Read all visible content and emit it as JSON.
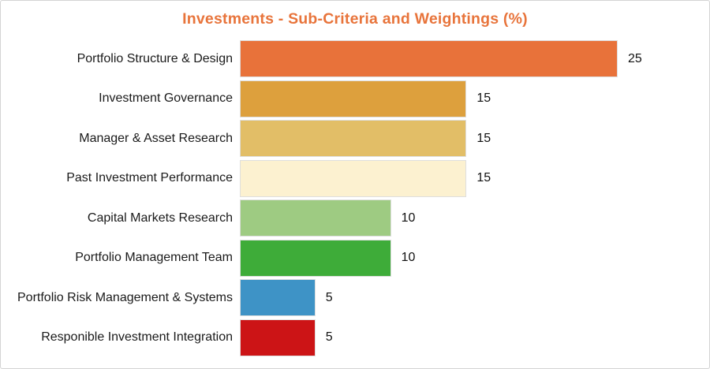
{
  "chart_data": {
    "type": "bar",
    "orientation": "horizontal",
    "title": "Investments - Sub-Criteria and Weightings (%)",
    "categories": [
      "Portfolio Structure & Design",
      "Investment Governance",
      "Manager & Asset Research",
      "Past Investment Performance",
      "Capital Markets Research",
      "Portfolio Management Team",
      "Portfolio Risk Management & Systems",
      "Responible Investment Integration"
    ],
    "values": [
      25,
      15,
      15,
      15,
      10,
      10,
      5,
      5
    ],
    "bar_colors": [
      "#E8723A",
      "#DDA03D",
      "#E2BE67",
      "#FCF1D0",
      "#9ECB82",
      "#3EAC39",
      "#3E93C6",
      "#CC1416"
    ],
    "xlim": [
      0,
      25
    ],
    "xlabel": "",
    "ylabel": "",
    "grid": false,
    "legend": "none",
    "value_labels_shown": true
  },
  "colors": {
    "title": "#E8743B",
    "label_text": "#1a1a1a",
    "panel_border": "#d4d4d4"
  }
}
